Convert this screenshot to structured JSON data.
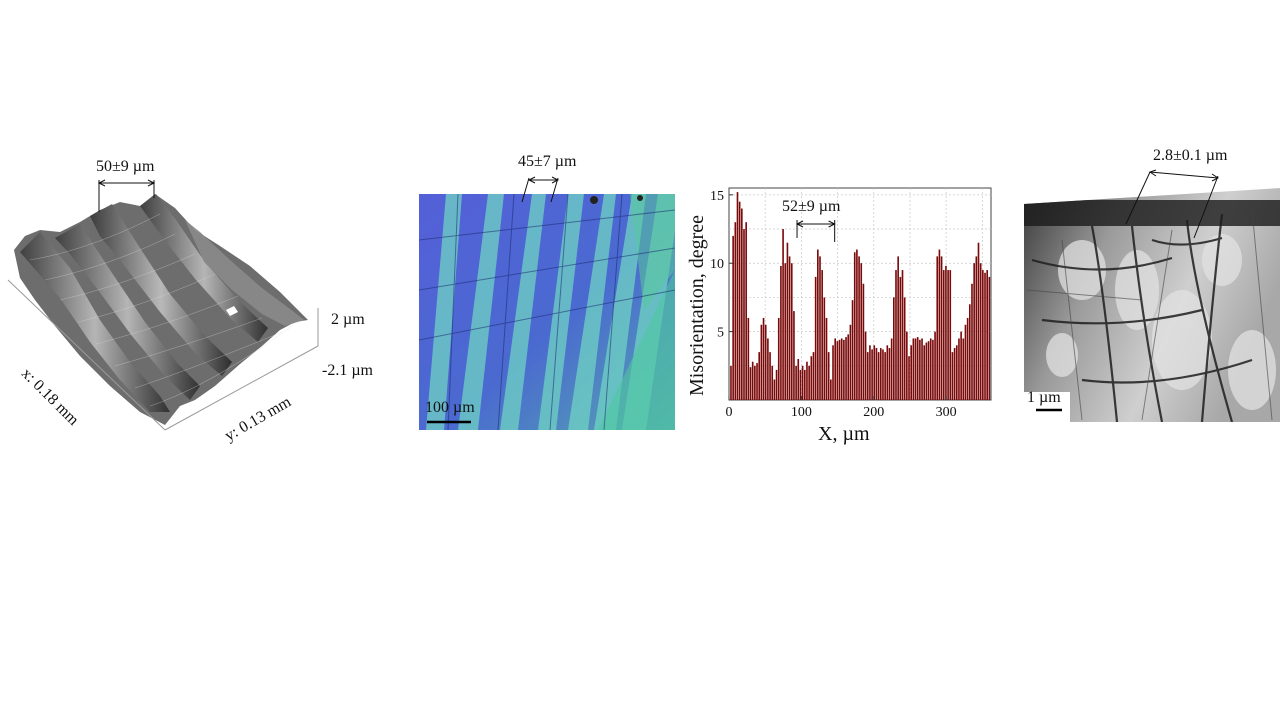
{
  "afm": {
    "period_label": "50±9 µm",
    "z_max_label": "2 µm",
    "z_min_label": "-2.1 µm",
    "x_axis_label": "x: 0.18 mm",
    "y_axis_label": "y: 0.13 mm"
  },
  "micrograph": {
    "period_label": "45±7 µm",
    "scale_bar_label": "100 µm"
  },
  "tem": {
    "period_label": "2.8±0.1 µm",
    "scale_bar_label": "1 µm"
  },
  "chart_data": {
    "type": "bar",
    "title": "",
    "xlabel": "X, µm",
    "ylabel": "Misorientation, degree",
    "xlim": [
      0,
      362
    ],
    "ylim": [
      0,
      15.5
    ],
    "xticks": [
      0,
      100,
      200,
      300
    ],
    "yticks": [
      5,
      10,
      15
    ],
    "grid": true,
    "bar_color": "#7a0a0a",
    "annotation": "52±9 µm",
    "annotation_span": [
      94,
      146
    ],
    "bar_width": 2.8,
    "x": [
      3,
      6,
      9,
      12,
      15,
      18,
      21,
      24,
      27,
      30,
      33,
      36,
      39,
      42,
      45,
      48,
      51,
      54,
      57,
      60,
      63,
      66,
      69,
      72,
      75,
      78,
      81,
      84,
      87,
      90,
      93,
      96,
      99,
      102,
      105,
      108,
      111,
      114,
      117,
      120,
      123,
      126,
      129,
      132,
      135,
      138,
      141,
      144,
      147,
      150,
      153,
      156,
      159,
      162,
      165,
      168,
      171,
      174,
      177,
      180,
      183,
      186,
      189,
      192,
      195,
      198,
      201,
      204,
      207,
      210,
      213,
      216,
      219,
      222,
      225,
      228,
      231,
      234,
      237,
      240,
      243,
      246,
      249,
      252,
      255,
      258,
      261,
      264,
      267,
      270,
      273,
      276,
      279,
      282,
      285,
      288,
      291,
      294,
      297,
      300,
      303,
      306,
      309,
      312,
      315,
      318,
      321,
      324,
      327,
      330,
      333,
      336,
      339,
      342,
      345,
      348,
      351,
      354,
      357,
      360
    ],
    "values": [
      2.5,
      12,
      13,
      15.2,
      14.5,
      14,
      12.5,
      13,
      6,
      2.4,
      2.8,
      2.5,
      2.7,
      3.5,
      5.5,
      6,
      5.5,
      4.5,
      3.5,
      2.5,
      1.5,
      2.2,
      6,
      9.8,
      12.5,
      10,
      11.5,
      10.5,
      10,
      6.5,
      2.5,
      3,
      2.2,
      2.5,
      2.2,
      2.8,
      2.5,
      3.2,
      3.5,
      9,
      11,
      10.5,
      9.5,
      7.5,
      6,
      3.5,
      1.5,
      4,
      4.5,
      4.3,
      4.4,
      4.5,
      4.4,
      4.6,
      4.8,
      5.5,
      7.3,
      10.8,
      11,
      10.5,
      10,
      8.5,
      5,
      3.5,
      4,
      3.7,
      4,
      3.8,
      3.5,
      3.8,
      3.7,
      3.5,
      4,
      3.8,
      4.5,
      7.5,
      9.5,
      10.5,
      9,
      9.5,
      7.5,
      5,
      3.2,
      4,
      4.5,
      4.5,
      4.6,
      4.4,
      4.5,
      4,
      4.2,
      4.3,
      4.5,
      4.4,
      5,
      10.5,
      11,
      10.5,
      9.5,
      9.8,
      9.5,
      9.5,
      3.5,
      3.8,
      4,
      4.5,
      5,
      4.5,
      5.5,
      6,
      7,
      8.5,
      10,
      10.5,
      11.5,
      10,
      9.5,
      9.3,
      9.5,
      9
    ]
  }
}
